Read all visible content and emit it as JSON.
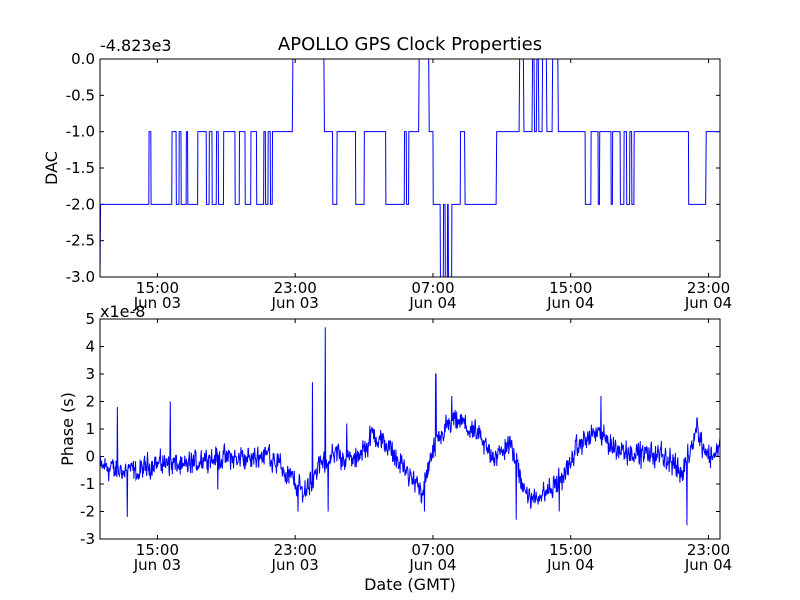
{
  "figure": {
    "title": "APOLLO GPS Clock Properties",
    "xlabel": "Date (GMT)"
  },
  "chart_data": [
    {
      "type": "line",
      "ylabel": "DAC",
      "offset_text": "-4.823e3",
      "ylim": [
        -3.0,
        0.0
      ],
      "yticks": [
        0.0,
        -0.5,
        -1.0,
        -1.5,
        -2.0,
        -2.5,
        -3.0
      ],
      "ytick_labels": [
        "0.0",
        "-0.5",
        "-1.0",
        "-1.5",
        "-2.0",
        "-2.5",
        "-3.0"
      ],
      "xlim": [
        "2009-06-03 11:40",
        "2009-06-04 23:40"
      ],
      "xticks": [
        "2009-06-03 15:00",
        "2009-06-03 23:00",
        "2009-06-04 07:00",
        "2009-06-04 15:00",
        "2009-06-04 23:00"
      ],
      "xtick_time_labels": [
        "15:00",
        "23:00",
        "07:00",
        "15:00",
        "23:00"
      ],
      "xtick_date_labels": [
        "Jun 03",
        "Jun 03",
        "Jun 04",
        "Jun 04",
        "Jun 04"
      ],
      "grid": false,
      "series": [
        {
          "color": "#0000ff",
          "points": [
            [
              "2009-06-03 11:40",
              -3.0
            ],
            [
              "2009-06-03 11:42",
              -2.0
            ],
            [
              "2009-06-03 14:30",
              -2.0
            ],
            [
              "2009-06-03 14:31",
              -1.0
            ],
            [
              "2009-06-03 14:37",
              -1.0
            ],
            [
              "2009-06-03 14:38",
              -2.0
            ],
            [
              "2009-06-03 15:50",
              -2.0
            ],
            [
              "2009-06-03 15:51",
              -1.0
            ],
            [
              "2009-06-03 16:05",
              -1.0
            ],
            [
              "2009-06-03 16:06",
              -2.0
            ],
            [
              "2009-06-03 16:15",
              -2.0
            ],
            [
              "2009-06-03 16:16",
              -1.0
            ],
            [
              "2009-06-03 16:22",
              -1.0
            ],
            [
              "2009-06-03 16:23",
              -2.0
            ],
            [
              "2009-06-03 16:40",
              -2.0
            ],
            [
              "2009-06-03 16:41",
              -1.0
            ],
            [
              "2009-06-03 16:45",
              -1.0
            ],
            [
              "2009-06-03 16:46",
              -2.0
            ],
            [
              "2009-06-03 17:20",
              -2.0
            ],
            [
              "2009-06-03 17:21",
              -1.0
            ],
            [
              "2009-06-03 17:50",
              -1.0
            ],
            [
              "2009-06-03 17:51",
              -2.0
            ],
            [
              "2009-06-03 18:00",
              -2.0
            ],
            [
              "2009-06-03 18:01",
              -1.0
            ],
            [
              "2009-06-03 18:10",
              -1.0
            ],
            [
              "2009-06-03 18:11",
              -2.0
            ],
            [
              "2009-06-03 18:25",
              -2.0
            ],
            [
              "2009-06-03 18:26",
              -1.0
            ],
            [
              "2009-06-03 18:32",
              -1.0
            ],
            [
              "2009-06-03 18:33",
              -2.0
            ],
            [
              "2009-06-03 18:50",
              -2.0
            ],
            [
              "2009-06-03 18:51",
              -1.0
            ],
            [
              "2009-06-03 19:30",
              -1.0
            ],
            [
              "2009-06-03 19:31",
              -2.0
            ],
            [
              "2009-06-03 19:45",
              -2.0
            ],
            [
              "2009-06-03 19:46",
              -1.0
            ],
            [
              "2009-06-03 20:05",
              -1.0
            ],
            [
              "2009-06-03 20:06",
              -2.0
            ],
            [
              "2009-06-03 20:25",
              -2.0
            ],
            [
              "2009-06-03 20:26",
              -1.0
            ],
            [
              "2009-06-03 20:45",
              -1.0
            ],
            [
              "2009-06-03 20:46",
              -2.0
            ],
            [
              "2009-06-03 21:10",
              -2.0
            ],
            [
              "2009-06-03 21:11",
              -1.0
            ],
            [
              "2009-06-03 21:16",
              -1.0
            ],
            [
              "2009-06-03 21:17",
              -2.0
            ],
            [
              "2009-06-03 21:25",
              -2.0
            ],
            [
              "2009-06-03 21:26",
              -1.0
            ],
            [
              "2009-06-03 21:33",
              -1.0
            ],
            [
              "2009-06-03 21:34",
              -2.0
            ],
            [
              "2009-06-03 21:40",
              -2.0
            ],
            [
              "2009-06-03 21:41",
              -1.0
            ],
            [
              "2009-06-03 22:50",
              -1.0
            ],
            [
              "2009-06-03 22:52",
              0.0
            ],
            [
              "2009-06-04 00:40",
              0.0
            ],
            [
              "2009-06-04 00:42",
              -1.0
            ],
            [
              "2009-06-04 01:10",
              -1.0
            ],
            [
              "2009-06-04 01:11",
              -2.0
            ],
            [
              "2009-06-04 01:25",
              -2.0
            ],
            [
              "2009-06-04 01:26",
              -1.0
            ],
            [
              "2009-06-04 02:30",
              -1.0
            ],
            [
              "2009-06-04 02:31",
              -2.0
            ],
            [
              "2009-06-04 03:00",
              -2.0
            ],
            [
              "2009-06-04 03:01",
              -1.0
            ],
            [
              "2009-06-04 04:15",
              -1.0
            ],
            [
              "2009-06-04 04:16",
              -2.0
            ],
            [
              "2009-06-04 05:20",
              -2.0
            ],
            [
              "2009-06-04 05:21",
              -1.0
            ],
            [
              "2009-06-04 05:27",
              -1.0
            ],
            [
              "2009-06-04 05:28",
              -2.0
            ],
            [
              "2009-06-04 05:35",
              -2.0
            ],
            [
              "2009-06-04 05:36",
              -1.0
            ],
            [
              "2009-06-04 06:10",
              -1.0
            ],
            [
              "2009-06-04 06:12",
              0.0
            ],
            [
              "2009-06-04 06:45",
              0.0
            ],
            [
              "2009-06-04 06:47",
              -1.0
            ],
            [
              "2009-06-04 07:00",
              -1.0
            ],
            [
              "2009-06-04 07:01",
              -2.0
            ],
            [
              "2009-06-04 07:25",
              -2.0
            ],
            [
              "2009-06-04 07:26",
              -3.0
            ],
            [
              "2009-06-04 07:36",
              -3.0
            ],
            [
              "2009-06-04 07:37",
              -2.0
            ],
            [
              "2009-06-04 07:42",
              -2.0
            ],
            [
              "2009-06-04 07:43",
              -3.0
            ],
            [
              "2009-06-04 07:50",
              -3.0
            ],
            [
              "2009-06-04 07:51",
              -2.0
            ],
            [
              "2009-06-04 07:53",
              -2.0
            ],
            [
              "2009-06-04 07:54",
              -3.0
            ],
            [
              "2009-06-04 08:05",
              -3.0
            ],
            [
              "2009-06-04 08:06",
              -2.0
            ],
            [
              "2009-06-04 08:35",
              -2.0
            ],
            [
              "2009-06-04 08:36",
              -1.0
            ],
            [
              "2009-06-04 08:50",
              -1.0
            ],
            [
              "2009-06-04 08:52",
              -2.0
            ],
            [
              "2009-06-04 10:40",
              -2.0
            ],
            [
              "2009-06-04 10:42",
              -1.0
            ],
            [
              "2009-06-04 12:00",
              -1.0
            ],
            [
              "2009-06-04 12:02",
              0.0
            ],
            [
              "2009-06-04 12:15",
              0.0
            ],
            [
              "2009-06-04 12:17",
              -1.0
            ],
            [
              "2009-06-04 12:45",
              -1.0
            ],
            [
              "2009-06-04 12:47",
              0.0
            ],
            [
              "2009-06-04 12:52",
              0.0
            ],
            [
              "2009-06-04 12:54",
              -1.0
            ],
            [
              "2009-06-04 13:00",
              -1.0
            ],
            [
              "2009-06-04 13:02",
              0.0
            ],
            [
              "2009-06-04 13:07",
              0.0
            ],
            [
              "2009-06-04 13:09",
              -1.0
            ],
            [
              "2009-06-04 13:20",
              -1.0
            ],
            [
              "2009-06-04 13:22",
              0.0
            ],
            [
              "2009-06-04 13:35",
              0.0
            ],
            [
              "2009-06-04 13:37",
              -1.0
            ],
            [
              "2009-06-04 13:55",
              -1.0
            ],
            [
              "2009-06-04 13:57",
              0.0
            ],
            [
              "2009-06-04 14:15",
              0.0
            ],
            [
              "2009-06-04 14:17",
              -1.0
            ],
            [
              "2009-06-04 15:50",
              -1.0
            ],
            [
              "2009-06-04 15:51",
              -2.0
            ],
            [
              "2009-06-04 16:10",
              -2.0
            ],
            [
              "2009-06-04 16:11",
              -1.0
            ],
            [
              "2009-06-04 16:35",
              -1.0
            ],
            [
              "2009-06-04 16:36",
              -2.0
            ],
            [
              "2009-06-04 16:40",
              -2.0
            ],
            [
              "2009-06-04 16:41",
              -1.0
            ],
            [
              "2009-06-04 17:20",
              -1.0
            ],
            [
              "2009-06-04 17:21",
              -2.0
            ],
            [
              "2009-06-04 17:25",
              -2.0
            ],
            [
              "2009-06-04 17:26",
              -1.0
            ],
            [
              "2009-06-04 17:52",
              -1.0
            ],
            [
              "2009-06-04 17:53",
              -2.0
            ],
            [
              "2009-06-04 18:05",
              -2.0
            ],
            [
              "2009-06-04 18:06",
              -1.0
            ],
            [
              "2009-06-04 18:14",
              -1.0
            ],
            [
              "2009-06-04 18:15",
              -2.0
            ],
            [
              "2009-06-04 18:25",
              -2.0
            ],
            [
              "2009-06-04 18:26",
              -1.0
            ],
            [
              "2009-06-04 18:32",
              -1.0
            ],
            [
              "2009-06-04 18:33",
              -2.0
            ],
            [
              "2009-06-04 18:40",
              -2.0
            ],
            [
              "2009-06-04 18:41",
              -1.0
            ],
            [
              "2009-06-04 21:50",
              -1.0
            ],
            [
              "2009-06-04 21:51",
              -2.0
            ],
            [
              "2009-06-04 22:50",
              -2.0
            ],
            [
              "2009-06-04 22:52",
              -1.0
            ],
            [
              "2009-06-04 23:40",
              -1.0
            ]
          ]
        }
      ]
    },
    {
      "type": "line",
      "ylabel": "Phase (s)",
      "offset_text": "x1e-8",
      "ylim": [
        -3,
        5
      ],
      "yticks": [
        5,
        4,
        3,
        2,
        1,
        0,
        -1,
        -2,
        -3
      ],
      "ytick_labels": [
        "5",
        "4",
        "3",
        "2",
        "1",
        "0",
        "-1",
        "-2",
        "-3"
      ],
      "xlim": [
        "2009-06-03 11:40",
        "2009-06-04 23:40"
      ],
      "xticks": [
        "2009-06-03 15:00",
        "2009-06-03 23:00",
        "2009-06-04 07:00",
        "2009-06-04 15:00",
        "2009-06-04 23:00"
      ],
      "xtick_time_labels": [
        "15:00",
        "23:00",
        "07:00",
        "15:00",
        "23:00"
      ],
      "xtick_date_labels": [
        "Jun 03",
        "Jun 03",
        "Jun 04",
        "Jun 04",
        "Jun 04"
      ],
      "grid": false,
      "noise_amplitude": 0.22,
      "series": [
        {
          "color": "#0000ff",
          "trend": [
            [
              "2009-06-03 11:40",
              -0.4
            ],
            [
              "2009-06-03 13:00",
              -0.5
            ],
            [
              "2009-06-03 14:00",
              -0.6
            ],
            [
              "2009-06-03 14:30",
              -0.3
            ],
            [
              "2009-06-03 15:30",
              -0.2
            ],
            [
              "2009-06-03 16:30",
              -0.4
            ],
            [
              "2009-06-03 18:00",
              0.0
            ],
            [
              "2009-06-03 20:00",
              -0.1
            ],
            [
              "2009-06-03 21:30",
              0.1
            ],
            [
              "2009-06-03 22:30",
              -0.6
            ],
            [
              "2009-06-03 23:30",
              -1.3
            ],
            [
              "2009-06-04 00:30",
              -0.3
            ],
            [
              "2009-06-04 01:30",
              0.1
            ],
            [
              "2009-06-04 02:30",
              -0.2
            ],
            [
              "2009-06-04 03:30",
              0.8
            ],
            [
              "2009-06-04 04:30",
              0.3
            ],
            [
              "2009-06-04 05:30",
              -0.6
            ],
            [
              "2009-06-04 06:20",
              -1.3
            ],
            [
              "2009-06-04 07:00",
              0.1
            ],
            [
              "2009-06-04 07:40",
              1.0
            ],
            [
              "2009-06-04 08:30",
              1.3
            ],
            [
              "2009-06-04 09:30",
              0.8
            ],
            [
              "2009-06-04 10:30",
              0.0
            ],
            [
              "2009-06-04 11:30",
              0.4
            ],
            [
              "2009-06-04 12:30",
              -1.5
            ],
            [
              "2009-06-04 13:30",
              -1.3
            ],
            [
              "2009-06-04 14:30",
              -0.8
            ],
            [
              "2009-06-04 15:30",
              0.4
            ],
            [
              "2009-06-04 16:30",
              0.9
            ],
            [
              "2009-06-04 17:30",
              0.3
            ],
            [
              "2009-06-04 19:00",
              0.1
            ],
            [
              "2009-06-04 20:30",
              0.0
            ],
            [
              "2009-06-04 21:30",
              -0.6
            ],
            [
              "2009-06-04 22:15",
              1.0
            ],
            [
              "2009-06-04 23:00",
              0.0
            ],
            [
              "2009-06-04 23:40",
              0.3
            ]
          ],
          "spikes": [
            [
              "2009-06-03 12:40",
              1.8
            ],
            [
              "2009-06-03 13:15",
              -2.2
            ],
            [
              "2009-06-03 15:45",
              2.0
            ],
            [
              "2009-06-03 18:30",
              -1.2
            ],
            [
              "2009-06-03 23:10",
              -2.0
            ],
            [
              "2009-06-04 00:00",
              2.7
            ],
            [
              "2009-06-04 00:45",
              4.7
            ],
            [
              "2009-06-04 00:55",
              -2.0
            ],
            [
              "2009-06-04 02:00",
              1.2
            ],
            [
              "2009-06-04 06:30",
              -2.0
            ],
            [
              "2009-06-04 07:10",
              3.0
            ],
            [
              "2009-06-04 08:05",
              2.2
            ],
            [
              "2009-06-04 11:50",
              -2.3
            ],
            [
              "2009-06-04 12:40",
              -1.9
            ],
            [
              "2009-06-04 14:20",
              -2.0
            ],
            [
              "2009-06-04 16:45",
              2.2
            ],
            [
              "2009-06-04 21:45",
              -2.5
            ],
            [
              "2009-06-04 22:20",
              1.4
            ]
          ]
        }
      ]
    }
  ]
}
